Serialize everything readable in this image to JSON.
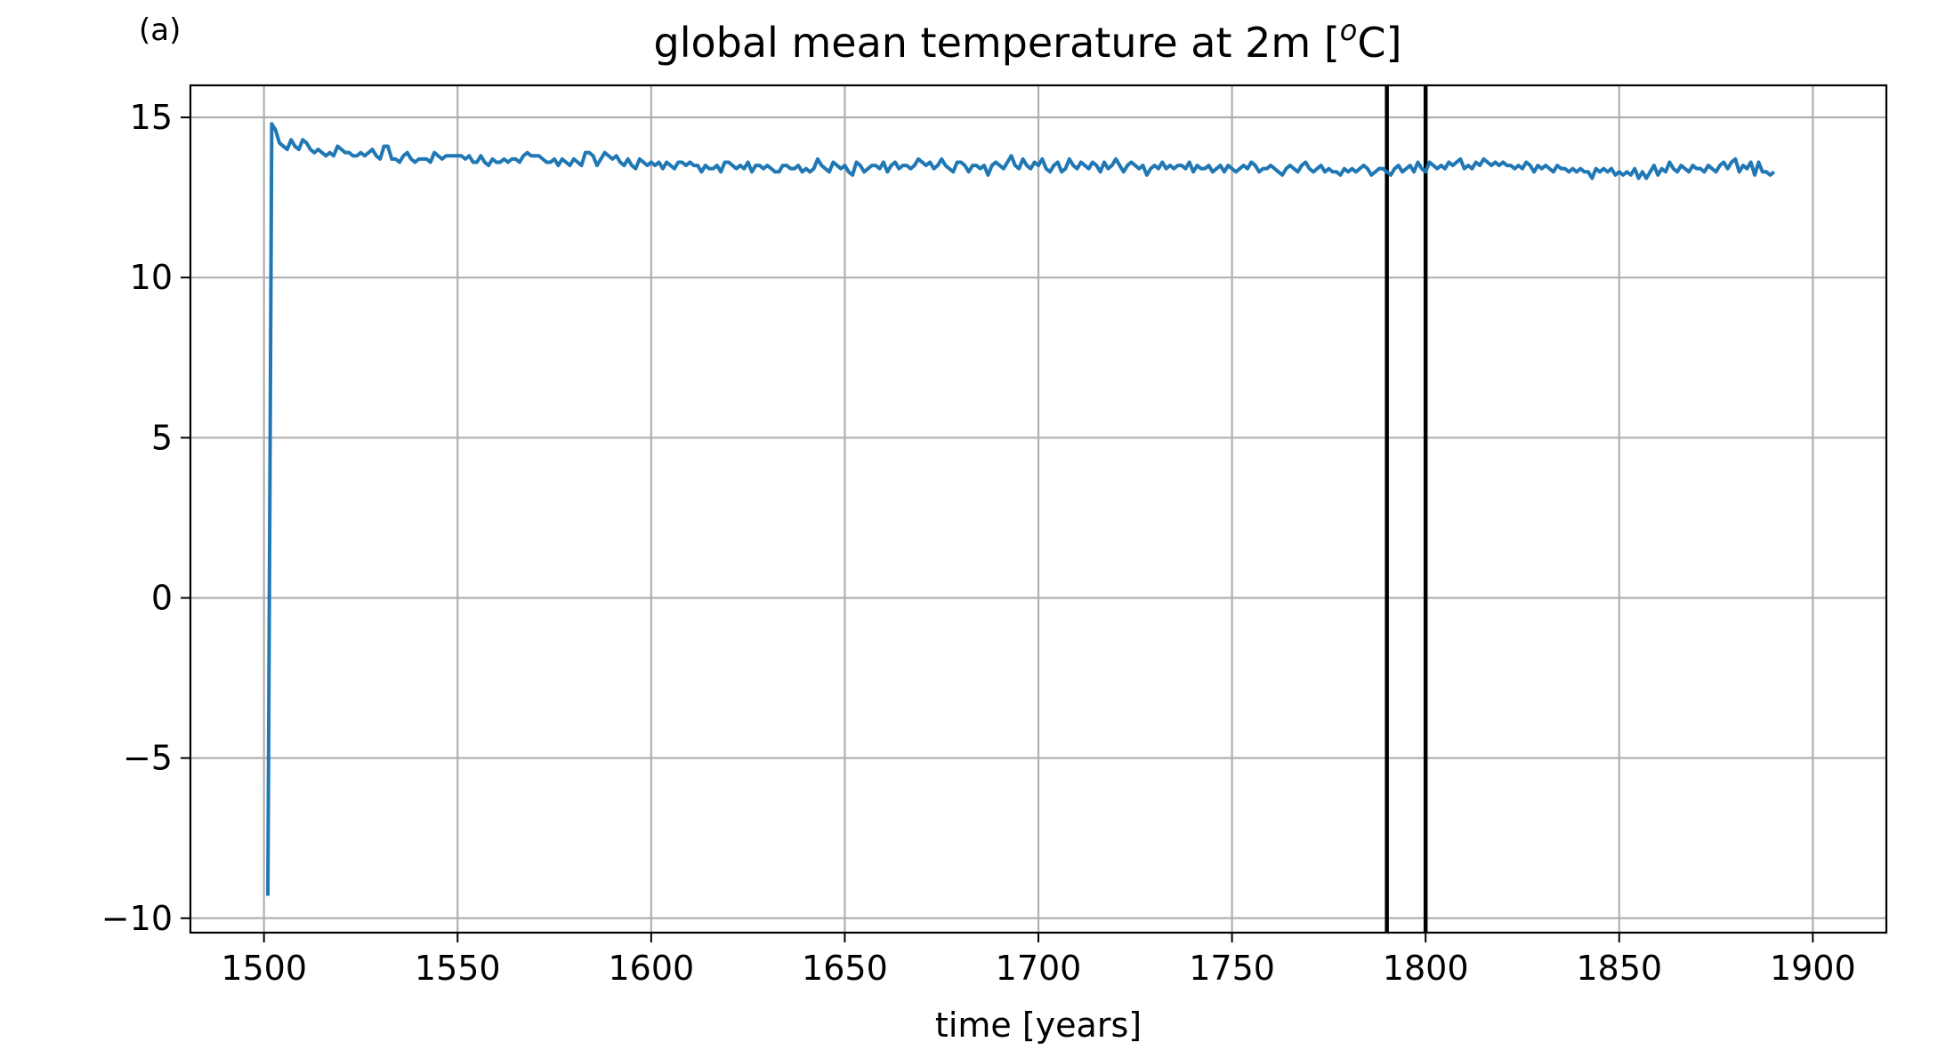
{
  "panel_label": "(a)",
  "chart_data": {
    "type": "line",
    "title_prefix": "global mean temperature at 2m [",
    "title_superscript": "o",
    "title_suffix": "C]",
    "xlabel": "time [years]",
    "ylabel": "",
    "xlim": [
      1481,
      1919
    ],
    "ylim": [
      -10.45,
      16.0
    ],
    "xticks": [
      1500,
      1550,
      1600,
      1650,
      1700,
      1750,
      1800,
      1850,
      1900
    ],
    "yticks": [
      15,
      10,
      5,
      0,
      -5,
      -10
    ],
    "ytick_labels": [
      "15",
      "10",
      "5",
      "0",
      "−5",
      "−10"
    ],
    "grid": true,
    "vertical_lines": [
      1790,
      1800
    ],
    "series": [
      {
        "color": "#1f77b4",
        "x": [
          1501,
          1502
        ],
        "y": [
          -9.3,
          14.8
        ],
        "tail": {
          "x_start": 1503,
          "y": [
            14.6,
            14.2,
            14.1,
            14.0,
            14.3,
            14.1,
            14.0,
            14.3,
            14.2,
            14.0,
            13.9,
            14.0,
            13.9,
            13.8,
            13.9,
            13.8,
            14.1,
            14.0,
            13.9,
            13.9,
            13.8,
            13.8,
            13.9,
            13.8,
            13.9,
            14.0,
            13.8,
            13.7,
            14.1,
            14.1,
            13.7,
            13.7,
            13.6,
            13.8,
            13.9,
            13.7,
            13.6,
            13.7,
            13.7,
            13.7,
            13.6,
            13.9,
            13.8,
            13.7,
            13.8,
            13.8,
            13.8,
            13.8,
            13.8,
            13.7,
            13.8,
            13.6,
            13.6,
            13.8,
            13.6,
            13.5,
            13.7,
            13.6,
            13.6,
            13.7,
            13.6,
            13.7,
            13.7,
            13.6,
            13.8,
            13.9,
            13.8,
            13.8,
            13.8,
            13.7,
            13.6,
            13.6,
            13.7,
            13.5,
            13.7,
            13.6,
            13.5,
            13.7,
            13.6,
            13.5,
            13.9,
            13.9,
            13.8,
            13.5,
            13.7,
            13.9,
            13.8,
            13.7,
            13.8,
            13.6,
            13.5,
            13.7,
            13.5,
            13.4,
            13.7,
            13.6,
            13.5,
            13.6,
            13.5,
            13.6,
            13.4,
            13.6,
            13.5,
            13.4,
            13.6,
            13.6,
            13.5,
            13.6,
            13.5,
            13.5,
            13.3,
            13.5,
            13.4,
            13.4,
            13.5,
            13.3,
            13.6,
            13.6,
            13.5,
            13.4,
            13.5,
            13.4,
            13.6,
            13.3,
            13.5,
            13.5,
            13.4,
            13.5,
            13.4,
            13.3,
            13.3,
            13.5,
            13.5,
            13.4,
            13.4,
            13.5,
            13.3,
            13.4,
            13.3,
            13.4,
            13.7,
            13.5,
            13.4,
            13.3,
            13.6,
            13.5,
            13.4,
            13.5,
            13.3,
            13.2,
            13.6,
            13.5,
            13.3,
            13.4,
            13.5,
            13.5,
            13.4,
            13.6,
            13.3,
            13.5,
            13.6,
            13.4,
            13.5,
            13.5,
            13.4,
            13.5,
            13.7,
            13.6,
            13.5,
            13.6,
            13.4,
            13.5,
            13.7,
            13.5,
            13.4,
            13.3,
            13.6,
            13.6,
            13.5,
            13.3,
            13.5,
            13.5,
            13.4,
            13.5,
            13.2,
            13.5,
            13.6,
            13.5,
            13.4,
            13.6,
            13.8,
            13.5,
            13.4,
            13.7,
            13.5,
            13.4,
            13.6,
            13.5,
            13.7,
            13.4,
            13.3,
            13.5,
            13.6,
            13.3,
            13.4,
            13.7,
            13.5,
            13.4,
            13.6,
            13.5,
            13.4,
            13.6,
            13.5,
            13.3,
            13.6,
            13.4,
            13.5,
            13.7,
            13.5,
            13.3,
            13.5,
            13.6,
            13.5,
            13.4,
            13.5,
            13.2,
            13.4,
            13.5,
            13.4,
            13.6,
            13.4,
            13.5,
            13.4,
            13.5,
            13.5,
            13.4,
            13.6,
            13.3,
            13.5,
            13.4,
            13.4,
            13.5,
            13.3,
            13.4,
            13.5,
            13.3,
            13.5,
            13.4,
            13.3,
            13.4,
            13.5,
            13.4,
            13.6,
            13.5,
            13.3,
            13.4,
            13.4,
            13.5,
            13.4,
            13.3,
            13.2,
            13.4,
            13.5,
            13.4,
            13.3,
            13.5,
            13.6,
            13.4,
            13.3,
            13.4,
            13.5,
            13.3,
            13.4,
            13.3,
            13.3,
            13.2,
            13.4,
            13.3,
            13.4,
            13.3,
            13.4,
            13.5,
            13.4,
            13.2,
            13.3,
            13.4,
            13.4,
            13.3,
            13.2,
            13.4,
            13.5,
            13.3,
            13.4,
            13.5,
            13.3,
            13.6,
            13.4,
            13.3,
            13.6,
            13.5,
            13.4,
            13.5,
            13.4,
            13.6,
            13.5,
            13.6,
            13.7,
            13.4,
            13.5,
            13.4,
            13.6,
            13.5,
            13.7,
            13.6,
            13.5,
            13.6,
            13.5,
            13.6,
            13.5,
            13.5,
            13.4,
            13.5,
            13.4,
            13.6,
            13.5,
            13.3,
            13.5,
            13.4,
            13.5,
            13.4,
            13.3,
            13.5,
            13.4,
            13.4,
            13.3,
            13.4,
            13.3,
            13.4,
            13.3,
            13.3,
            13.1,
            13.4,
            13.3,
            13.4,
            13.3,
            13.4,
            13.2,
            13.3,
            13.2,
            13.3,
            13.2,
            13.4,
            13.1,
            13.3,
            13.1,
            13.3,
            13.5,
            13.2,
            13.4,
            13.3,
            13.6,
            13.4,
            13.3,
            13.5,
            13.4,
            13.3,
            13.5,
            13.4,
            13.4,
            13.3,
            13.5,
            13.4,
            13.3,
            13.5,
            13.6,
            13.4,
            13.6,
            13.7,
            13.3,
            13.5,
            13.4,
            13.6,
            13.2,
            13.6,
            13.3,
            13.3,
            13.2,
            13.3
          ]
        }
      }
    ]
  }
}
